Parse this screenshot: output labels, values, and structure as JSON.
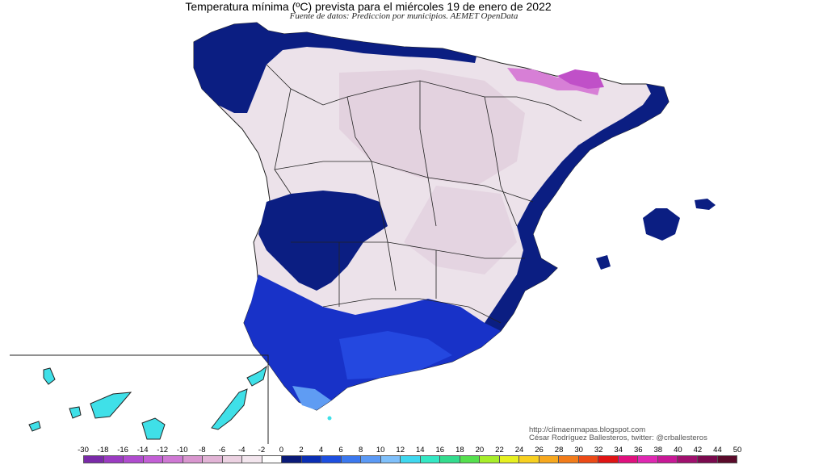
{
  "header": {
    "title": "Temperatura mínima (ºC) prevista para el miércoles 19 de enero de 2022",
    "source": "Fuente de datos: Prediccion por municipios. AEMET OpenData"
  },
  "credits": {
    "url": "http://climaenmapas.blogspot.com",
    "author": "César Rodríguez Ballesteros, twitter: @crballesteros"
  },
  "legend": {
    "ticks": [
      "-30",
      "-18",
      "-16",
      "-14",
      "-12",
      "-10",
      "-8",
      "-6",
      "-4",
      "-2",
      "0",
      "2",
      "4",
      "6",
      "8",
      "10",
      "12",
      "14",
      "16",
      "18",
      "20",
      "22",
      "24",
      "26",
      "28",
      "30",
      "32",
      "34",
      "36",
      "38",
      "40",
      "42",
      "44",
      "50"
    ],
    "colors": [
      "#7a2aa8",
      "#9b3bc2",
      "#b04ccf",
      "#c35fd6",
      "#cf78d4",
      "#d996cf",
      "#e2b4d6",
      "#ecd2e2",
      "#f3e6ee",
      "#ffffff",
      "#0a1a78",
      "#0a2eb4",
      "#1d4fe0",
      "#3b78ef",
      "#5b9af6",
      "#7fc0fb",
      "#3fd8ef",
      "#34e8c4",
      "#33dc8e",
      "#55e04e",
      "#a7ee2a",
      "#e6f020",
      "#f7d020",
      "#f7a81e",
      "#f27c1a",
      "#ec4a16",
      "#e01414",
      "#e0107e",
      "#e028b2",
      "#c81896",
      "#a0106e",
      "#7a0a4e",
      "#5a0a2a"
    ]
  },
  "map": {
    "colors": {
      "sea": "#ffffff",
      "cold_land": "#ece2ea",
      "cold_land_dark": "#dcc4d6",
      "frost_pink": "#d77fd6",
      "frost_violet": "#c050c8",
      "mild_navy": "#0b1e82",
      "mild_blue": "#1832c8",
      "warm_blue": "#2448e0",
      "light_blue": "#5f9cf3",
      "cyan": "#3fe0e8",
      "border": "#222222"
    }
  }
}
